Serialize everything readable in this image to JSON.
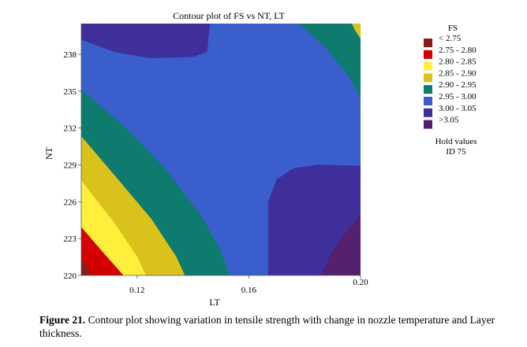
{
  "chart_data": {
    "type": "contour",
    "title": "Contour plot of FS vs NT, LT",
    "xlabel": "LT",
    "ylabel": "NT",
    "xlim": [
      0.1,
      0.2
    ],
    "ylim": [
      220,
      240.5
    ],
    "x_ticks": [
      "0.12",
      "0.16",
      "0.20"
    ],
    "y_ticks": [
      "220",
      "223",
      "226",
      "229",
      "232",
      "235",
      "238"
    ],
    "legend": {
      "title": "FS",
      "items": [
        {
          "range": "< 2.75",
          "color": "#8b1a1a"
        },
        {
          "range": "2.75  -  2.80",
          "color": "#d40000"
        },
        {
          "range": "2.80  -  2.85",
          "color": "#ffef3a"
        },
        {
          "range": "2.85  -  2.90",
          "color": "#d9c21c"
        },
        {
          "range": "2.90  -  2.95",
          "color": "#0f7a6e"
        },
        {
          "range": "2.95  -  3.00",
          "color": "#3a5fcd"
        },
        {
          "range": "3.00 -    3.05",
          "color": "#3f2f9a"
        },
        {
          "range": ">3.05",
          "color": "#55206e"
        }
      ]
    },
    "hold_values": {
      "title": "Hold values",
      "value": "ID 75"
    },
    "regions": [
      {
        "fs_range": "2.95 - 3.00",
        "color": "#3a5fcd",
        "points": [
          [
            0.1,
            220
          ],
          [
            0.2,
            220
          ],
          [
            0.2,
            240.5
          ],
          [
            0.1,
            240.5
          ]
        ]
      },
      {
        "fs_range": "3.00 - 3.05",
        "color": "#3f2f9a",
        "points": [
          [
            0.1,
            240.5
          ],
          [
            0.1,
            239.2
          ],
          [
            0.112,
            238.2
          ],
          [
            0.125,
            237.7
          ],
          [
            0.14,
            237.8
          ],
          [
            0.145,
            238.2
          ],
          [
            0.146,
            240.5
          ]
        ]
      },
      {
        "fs_range": "2.90 - 2.95",
        "color": "#0f7a6e",
        "points": [
          [
            0.178,
            240.5
          ],
          [
            0.187,
            238.7
          ],
          [
            0.196,
            236.2
          ],
          [
            0.2,
            234.4
          ],
          [
            0.2,
            240.5
          ]
        ]
      },
      {
        "fs_range": "2.85 - 2.90",
        "color": "#d9c21c",
        "points": [
          [
            0.197,
            240.5
          ],
          [
            0.198,
            240.0
          ],
          [
            0.2,
            239.3
          ],
          [
            0.2,
            240.5
          ]
        ]
      },
      {
        "fs_range": "3.00 - 3.05",
        "color": "#3f2f9a",
        "points": [
          [
            0.167,
            220
          ],
          [
            0.167,
            226.0
          ],
          [
            0.17,
            227.8
          ],
          [
            0.176,
            228.7
          ],
          [
            0.185,
            229.0
          ],
          [
            0.2,
            228.9
          ],
          [
            0.2,
            220
          ]
        ]
      },
      {
        "fs_range": ">3.05",
        "color": "#55206e",
        "points": [
          [
            0.186,
            220
          ],
          [
            0.189,
            221.5
          ],
          [
            0.194,
            223.3
          ],
          [
            0.2,
            224.9
          ],
          [
            0.2,
            220
          ]
        ]
      },
      {
        "fs_range": "2.90 - 2.95",
        "color": "#0f7a6e",
        "points": [
          [
            0.1,
            235.1
          ],
          [
            0.115,
            232.2
          ],
          [
            0.13,
            228.7
          ],
          [
            0.143,
            224.8
          ],
          [
            0.15,
            222.0
          ],
          [
            0.153,
            220
          ],
          [
            0.1,
            220
          ]
        ]
      },
      {
        "fs_range": "2.85 - 2.90",
        "color": "#d9c21c",
        "points": [
          [
            0.1,
            231.3
          ],
          [
            0.112,
            228.1
          ],
          [
            0.125,
            224.6
          ],
          [
            0.134,
            221.5
          ],
          [
            0.137,
            220
          ],
          [
            0.1,
            220
          ]
        ]
      },
      {
        "fs_range": "2.80 - 2.85",
        "color": "#ffef3a",
        "points": [
          [
            0.1,
            227.7
          ],
          [
            0.112,
            224.2
          ],
          [
            0.12,
            221.5
          ],
          [
            0.123,
            220
          ],
          [
            0.1,
            220
          ]
        ]
      },
      {
        "fs_range": "2.75 - 2.80",
        "color": "#d40000",
        "points": [
          [
            0.1,
            223.9
          ],
          [
            0.108,
            221.8
          ],
          [
            0.115,
            220
          ],
          [
            0.1,
            220
          ]
        ]
      },
      {
        "fs_range": "< 2.75",
        "color": "#8b1a1a",
        "points": [
          [
            0.1,
            221.4
          ],
          [
            0.104,
            220
          ],
          [
            0.1,
            220
          ]
        ]
      }
    ]
  },
  "caption": {
    "label": "Figure 21.",
    "text": " Contour plot showing variation in tensile strength with change in nozzle temperature and Layer thickness."
  }
}
